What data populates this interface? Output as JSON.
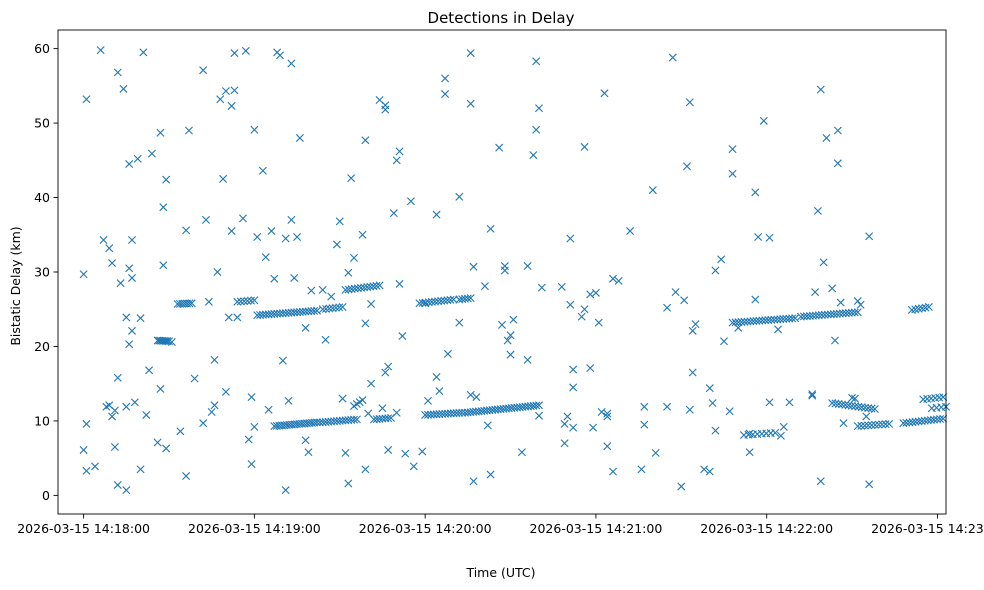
{
  "chart_data": {
    "type": "scatter",
    "title": "Detections in Delay",
    "xlabel": "Time (UTC)",
    "ylabel": "Bistatic Delay (km)",
    "marker": "x",
    "color": "#1f77b4",
    "xlim": [
      -9,
      303
    ],
    "ylim": [
      -2.5,
      62.5
    ],
    "x_units": "seconds since 2026-03-15 14:18:00",
    "x_ticks": [
      {
        "value": 0,
        "label": "2026-03-15 14:18:00"
      },
      {
        "value": 60,
        "label": "2026-03-15 14:19:00"
      },
      {
        "value": 120,
        "label": "2026-03-15 14:20:00"
      },
      {
        "value": 180,
        "label": "2026-03-15 14:21:00"
      },
      {
        "value": 240,
        "label": "2026-03-15 14:22:00"
      },
      {
        "value": 300,
        "label": "2026-03-15 14:23:00"
      }
    ],
    "y_ticks": [
      {
        "value": 0,
        "label": "0"
      },
      {
        "value": 10,
        "label": "10"
      },
      {
        "value": 20,
        "label": "20"
      },
      {
        "value": 30,
        "label": "30"
      },
      {
        "value": 40,
        "label": "40"
      },
      {
        "value": 50,
        "label": "50"
      },
      {
        "value": 60,
        "label": "60"
      }
    ],
    "track_segments": [
      {
        "x0": 26,
        "y0": 20.8,
        "x1": 30,
        "y1": 20.7,
        "n": 8
      },
      {
        "x0": 33,
        "y0": 25.7,
        "x1": 38,
        "y1": 25.8,
        "n": 7
      },
      {
        "x0": 54,
        "y0": 26.0,
        "x1": 60,
        "y1": 26.2,
        "n": 6
      },
      {
        "x0": 61,
        "y0": 24.2,
        "x1": 82,
        "y1": 24.8,
        "n": 22
      },
      {
        "x0": 84,
        "y0": 25.0,
        "x1": 91,
        "y1": 25.3,
        "n": 7
      },
      {
        "x0": 92,
        "y0": 27.6,
        "x1": 104,
        "y1": 28.2,
        "n": 12
      },
      {
        "x0": 118,
        "y0": 25.8,
        "x1": 130,
        "y1": 26.3,
        "n": 12
      },
      {
        "x0": 132,
        "y0": 26.3,
        "x1": 136,
        "y1": 26.5,
        "n": 5
      },
      {
        "x0": 67,
        "y0": 9.3,
        "x1": 82,
        "y1": 9.8,
        "n": 18
      },
      {
        "x0": 83,
        "y0": 9.8,
        "x1": 96,
        "y1": 10.2,
        "n": 14
      },
      {
        "x0": 95,
        "y0": 12.0,
        "x1": 98,
        "y1": 12.8,
        "n": 4
      },
      {
        "x0": 102,
        "y0": 10.2,
        "x1": 108,
        "y1": 10.4,
        "n": 7
      },
      {
        "x0": 120,
        "y0": 10.8,
        "x1": 133,
        "y1": 11.1,
        "n": 14
      },
      {
        "x0": 134,
        "y0": 11.1,
        "x1": 160,
        "y1": 12.1,
        "n": 28
      },
      {
        "x0": 228,
        "y0": 23.2,
        "x1": 250,
        "y1": 23.8,
        "n": 22
      },
      {
        "x0": 252,
        "y0": 24.0,
        "x1": 272,
        "y1": 24.6,
        "n": 20
      },
      {
        "x0": 232,
        "y0": 8.1,
        "x1": 243,
        "y1": 8.4,
        "n": 8
      },
      {
        "x0": 263,
        "y0": 12.4,
        "x1": 278,
        "y1": 11.6,
        "n": 14
      },
      {
        "x0": 272,
        "y0": 9.3,
        "x1": 283,
        "y1": 9.6,
        "n": 10
      },
      {
        "x0": 288,
        "y0": 9.7,
        "x1": 302,
        "y1": 10.3,
        "n": 14
      },
      {
        "x0": 291,
        "y0": 24.9,
        "x1": 297,
        "y1": 25.3,
        "n": 6
      },
      {
        "x0": 295,
        "y0": 12.9,
        "x1": 302,
        "y1": 13.2,
        "n": 6
      },
      {
        "x0": 298,
        "y0": 11.7,
        "x1": 303,
        "y1": 11.9,
        "n": 4
      }
    ],
    "points": [
      [
        0,
        29.7
      ],
      [
        1,
        53.2
      ],
      [
        1,
        9.6
      ],
      [
        1,
        3.3
      ],
      [
        0,
        6.1
      ],
      [
        4,
        3.9
      ],
      [
        6,
        59.8
      ],
      [
        7,
        34.3
      ],
      [
        8,
        11.9
      ],
      [
        9,
        12.1
      ],
      [
        9,
        33.2
      ],
      [
        10,
        31.2
      ],
      [
        10,
        10.6
      ],
      [
        11,
        11.4
      ],
      [
        11,
        6.5
      ],
      [
        12,
        56.8
      ],
      [
        12,
        15.8
      ],
      [
        12,
        1.4
      ],
      [
        13,
        28.5
      ],
      [
        14,
        54.6
      ],
      [
        15,
        23.9
      ],
      [
        15,
        11.9
      ],
      [
        15,
        0.7
      ],
      [
        16,
        44.5
      ],
      [
        16,
        20.3
      ],
      [
        16,
        30.5
      ],
      [
        17,
        29.2
      ],
      [
        17,
        22.1
      ],
      [
        17,
        34.3
      ],
      [
        18,
        12.5
      ],
      [
        19,
        45.2
      ],
      [
        20,
        23.8
      ],
      [
        20,
        3.5
      ],
      [
        21,
        59.5
      ],
      [
        22,
        10.8
      ],
      [
        23,
        16.8
      ],
      [
        24,
        45.9
      ],
      [
        26,
        7.1
      ],
      [
        27,
        48.7
      ],
      [
        27,
        14.3
      ],
      [
        28,
        38.7
      ],
      [
        28,
        30.9
      ],
      [
        29,
        42.4
      ],
      [
        29,
        6.3
      ],
      [
        31,
        20.6
      ],
      [
        34,
        8.6
      ],
      [
        36,
        35.6
      ],
      [
        36,
        2.6
      ],
      [
        37,
        49.0
      ],
      [
        39,
        15.7
      ],
      [
        42,
        57.1
      ],
      [
        42,
        9.7
      ],
      [
        43,
        37.0
      ],
      [
        44,
        26.0
      ],
      [
        45,
        11.2
      ],
      [
        46,
        18.2
      ],
      [
        46,
        12.1
      ],
      [
        47,
        30.0
      ],
      [
        48,
        53.2
      ],
      [
        49,
        42.5
      ],
      [
        50,
        54.3
      ],
      [
        50,
        13.9
      ],
      [
        51,
        23.9
      ],
      [
        52,
        35.5
      ],
      [
        52,
        52.3
      ],
      [
        53,
        59.4
      ],
      [
        53,
        54.4
      ],
      [
        54,
        23.9
      ],
      [
        56,
        37.2
      ],
      [
        57,
        59.7
      ],
      [
        58,
        7.5
      ],
      [
        59,
        13.2
      ],
      [
        59,
        4.2
      ],
      [
        60,
        49.1
      ],
      [
        60,
        9.2
      ],
      [
        61,
        34.7
      ],
      [
        63,
        43.6
      ],
      [
        64,
        32.0
      ],
      [
        65,
        11.5
      ],
      [
        66,
        35.5
      ],
      [
        67,
        29.1
      ],
      [
        68,
        59.5
      ],
      [
        69,
        59.1
      ],
      [
        70,
        18.1
      ],
      [
        71,
        34.5
      ],
      [
        71,
        0.7
      ],
      [
        72,
        12.7
      ],
      [
        73,
        58.0
      ],
      [
        73,
        37.0
      ],
      [
        74,
        29.2
      ],
      [
        75,
        34.7
      ],
      [
        76,
        48.0
      ],
      [
        78,
        22.5
      ],
      [
        78,
        7.4
      ],
      [
        79,
        5.8
      ],
      [
        80,
        27.5
      ],
      [
        84,
        27.6
      ],
      [
        85,
        20.9
      ],
      [
        87,
        26.7
      ],
      [
        89,
        33.7
      ],
      [
        90,
        36.8
      ],
      [
        91,
        13.0
      ],
      [
        92,
        5.7
      ],
      [
        93,
        1.6
      ],
      [
        93,
        29.9
      ],
      [
        94,
        42.6
      ],
      [
        95,
        31.9
      ],
      [
        98,
        35.0
      ],
      [
        99,
        47.7
      ],
      [
        99,
        23.1
      ],
      [
        99,
        3.5
      ],
      [
        100,
        11.0
      ],
      [
        101,
        25.7
      ],
      [
        101,
        15.0
      ],
      [
        104,
        53.1
      ],
      [
        105,
        11.7
      ],
      [
        106,
        52.4
      ],
      [
        106,
        51.8
      ],
      [
        106,
        16.5
      ],
      [
        107,
        17.3
      ],
      [
        107,
        6.1
      ],
      [
        109,
        37.9
      ],
      [
        110,
        45.0
      ],
      [
        110,
        11.1
      ],
      [
        111,
        46.2
      ],
      [
        111,
        28.4
      ],
      [
        112,
        21.4
      ],
      [
        113,
        5.6
      ],
      [
        115,
        39.5
      ],
      [
        116,
        3.9
      ],
      [
        119,
        5.9
      ],
      [
        120,
        25.8
      ],
      [
        121,
        12.7
      ],
      [
        124,
        37.7
      ],
      [
        124,
        15.9
      ],
      [
        125,
        14.0
      ],
      [
        127,
        56.0
      ],
      [
        127,
        53.9
      ],
      [
        128,
        19.0
      ],
      [
        132,
        23.2
      ],
      [
        132,
        40.1
      ],
      [
        136,
        59.4
      ],
      [
        136,
        52.6
      ],
      [
        136,
        13.5
      ],
      [
        137,
        30.7
      ],
      [
        137,
        1.9
      ],
      [
        138,
        13.2
      ],
      [
        141,
        28.1
      ],
      [
        142,
        9.4
      ],
      [
        143,
        35.8
      ],
      [
        143,
        2.8
      ],
      [
        146,
        46.7
      ],
      [
        147,
        22.9
      ],
      [
        148,
        30.2
      ],
      [
        148,
        30.8
      ],
      [
        149,
        20.8
      ],
      [
        150,
        21.5
      ],
      [
        150,
        18.9
      ],
      [
        151,
        23.6
      ],
      [
        154,
        5.8
      ],
      [
        156,
        30.8
      ],
      [
        156,
        18.2
      ],
      [
        158,
        45.7
      ],
      [
        159,
        49.1
      ],
      [
        159,
        58.3
      ],
      [
        160,
        10.7
      ],
      [
        160,
        52.0
      ],
      [
        161,
        27.9
      ],
      [
        168,
        28.0
      ],
      [
        169,
        9.6
      ],
      [
        169,
        7.0
      ],
      [
        170,
        10.6
      ],
      [
        171,
        34.5
      ],
      [
        171,
        25.6
      ],
      [
        172,
        14.5
      ],
      [
        172,
        16.9
      ],
      [
        172,
        9.1
      ],
      [
        175,
        24.0
      ],
      [
        176,
        46.8
      ],
      [
        176,
        25.0
      ],
      [
        178,
        27.0
      ],
      [
        178,
        17.1
      ],
      [
        179,
        9.1
      ],
      [
        180,
        27.2
      ],
      [
        181,
        23.2
      ],
      [
        182,
        11.2
      ],
      [
        183,
        54.0
      ],
      [
        184,
        10.6
      ],
      [
        184,
        6.6
      ],
      [
        184,
        11.0
      ],
      [
        186,
        3.2
      ],
      [
        186,
        29.1
      ],
      [
        188,
        28.8
      ],
      [
        192,
        35.5
      ],
      [
        196,
        3.5
      ],
      [
        197,
        9.5
      ],
      [
        197,
        11.9
      ],
      [
        200,
        41.0
      ],
      [
        201,
        5.7
      ],
      [
        205,
        11.9
      ],
      [
        205,
        25.2
      ],
      [
        207,
        58.8
      ],
      [
        208,
        27.3
      ],
      [
        210,
        1.2
      ],
      [
        211,
        26.2
      ],
      [
        212,
        44.2
      ],
      [
        213,
        52.8
      ],
      [
        213,
        11.5
      ],
      [
        214,
        16.5
      ],
      [
        214,
        22.1
      ],
      [
        215,
        23.0
      ],
      [
        218,
        3.5
      ],
      [
        220,
        3.2
      ],
      [
        220,
        14.4
      ],
      [
        221,
        12.4
      ],
      [
        222,
        30.2
      ],
      [
        222,
        8.7
      ],
      [
        224,
        31.7
      ],
      [
        225,
        20.7
      ],
      [
        227,
        11.3
      ],
      [
        228,
        46.5
      ],
      [
        228,
        43.2
      ],
      [
        230,
        22.5
      ],
      [
        234,
        8.3
      ],
      [
        234,
        5.8
      ],
      [
        236,
        40.7
      ],
      [
        236,
        26.3
      ],
      [
        237,
        34.7
      ],
      [
        239,
        50.3
      ],
      [
        241,
        34.6
      ],
      [
        241,
        12.5
      ],
      [
        244,
        22.3
      ],
      [
        245,
        8.0
      ],
      [
        246,
        9.2
      ],
      [
        248,
        12.5
      ],
      [
        256,
        13.4
      ],
      [
        256,
        13.6
      ],
      [
        257,
        27.3
      ],
      [
        258,
        38.2
      ],
      [
        259,
        1.9
      ],
      [
        259,
        54.5
      ],
      [
        260,
        31.3
      ],
      [
        261,
        48.0
      ],
      [
        263,
        27.8
      ],
      [
        264,
        20.8
      ],
      [
        265,
        49.0
      ],
      [
        265,
        44.6
      ],
      [
        266,
        25.9
      ],
      [
        267,
        9.7
      ],
      [
        270,
        13.1
      ],
      [
        271,
        13.0
      ],
      [
        272,
        26.1
      ],
      [
        273,
        25.6
      ],
      [
        275,
        10.6
      ],
      [
        276,
        34.8
      ],
      [
        276,
        1.5
      ]
    ]
  }
}
